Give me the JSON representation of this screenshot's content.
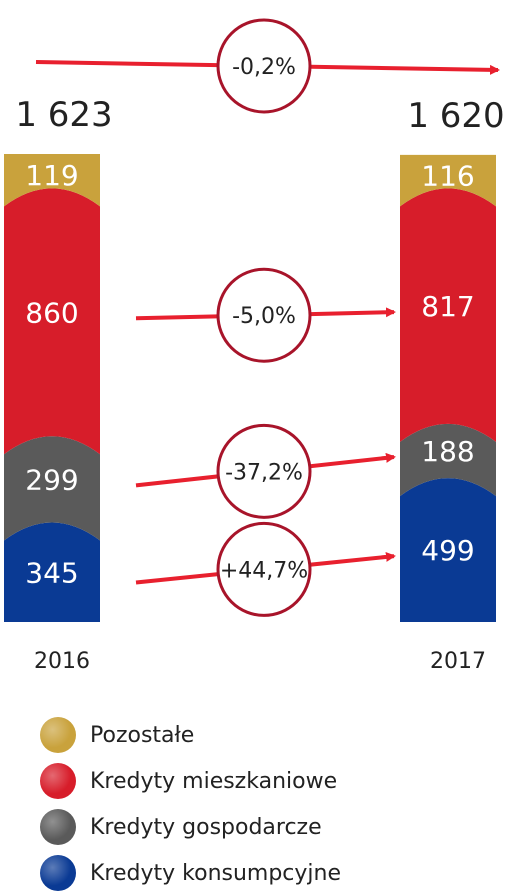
{
  "chart_data": {
    "type": "bar",
    "stacked": true,
    "categories": [
      "2016",
      "2017"
    ],
    "totals": [
      "1 623",
      "1 620"
    ],
    "total_values": [
      1623,
      1620
    ],
    "total_change": "-0,2%",
    "series": [
      {
        "name": "Kredyty konsumpcyjne",
        "values": [
          345,
          499
        ],
        "labels": [
          "345",
          "499"
        ],
        "color": "#0a3a94",
        "change": "+44,7%"
      },
      {
        "name": "Kredyty gospodarcze",
        "values": [
          299,
          188
        ],
        "labels": [
          "299",
          "188"
        ],
        "color": "#5a5a5a",
        "change": "-37,2%"
      },
      {
        "name": "Kredyty mieszkaniowe",
        "values": [
          860,
          817
        ],
        "labels": [
          "860",
          "817"
        ],
        "color": "#d71d2a",
        "change": "-5,0%"
      },
      {
        "name": "Pozostałe",
        "values": [
          119,
          116
        ],
        "labels": [
          "119",
          "116"
        ],
        "color": "#c9a23c",
        "change": ""
      }
    ],
    "legend": [
      "Pozostałe",
      "Kredyty mieszkaniowe",
      "Kredyty gospodarcze",
      "Kredyty konsumpcyjne"
    ],
    "legend_placement": "bottom",
    "accent_color": "#e8202e"
  }
}
